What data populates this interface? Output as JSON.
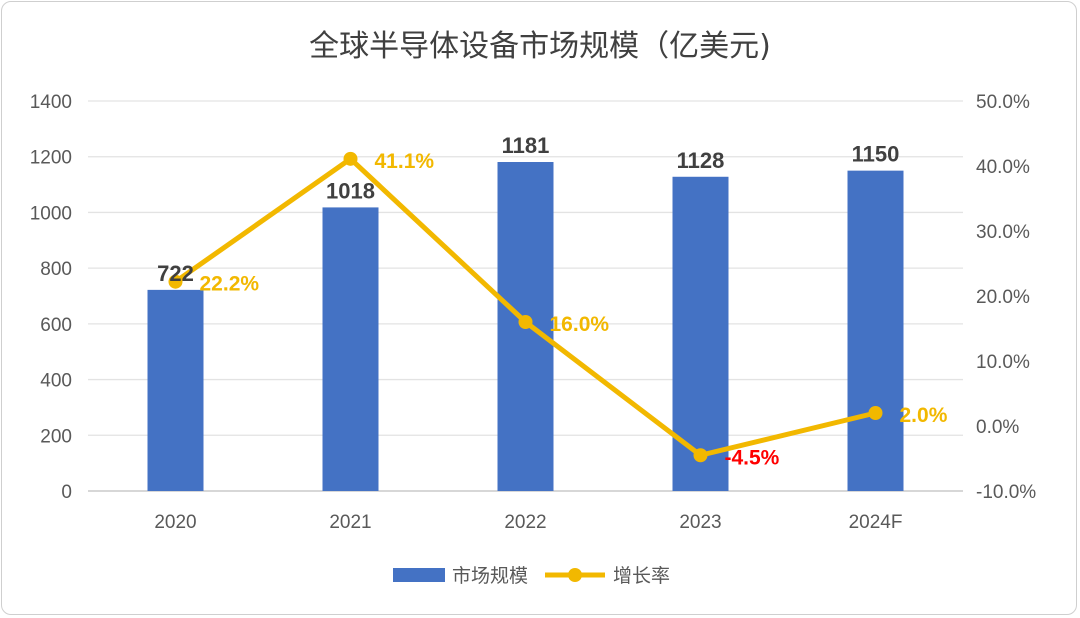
{
  "chart_data": {
    "type": "bar+line",
    "title": "全球半导体设备市场规模（亿美元)",
    "categories": [
      "2020",
      "2021",
      "2022",
      "2023",
      "2024F"
    ],
    "series": [
      {
        "name": "市场规模",
        "type": "bar",
        "axis": "left",
        "values": [
          722,
          1018,
          1181,
          1128,
          1150
        ],
        "labels": [
          "722",
          "1018",
          "1181",
          "1128",
          "1150"
        ],
        "color": "#4472C4"
      },
      {
        "name": "增长率",
        "type": "line",
        "axis": "right",
        "values": [
          22.2,
          41.1,
          16.0,
          -4.5,
          2.0
        ],
        "labels": [
          "22.2%",
          "41.1%",
          "16.0%",
          "-4.5%",
          "2.0%"
        ],
        "color": "#F2B800",
        "negative_label_color": "#FF0000"
      }
    ],
    "left_axis": {
      "ylim": [
        0,
        1400
      ],
      "ticks": [
        "0",
        "200",
        "400",
        "600",
        "800",
        "1000",
        "1200",
        "1400"
      ]
    },
    "right_axis": {
      "ylim": [
        -10,
        50
      ],
      "ticks": [
        "-10.0%",
        "0.0%",
        "10.0%",
        "20.0%",
        "30.0%",
        "40.0%",
        "50.0%"
      ]
    },
    "grid": true,
    "legend": "bottom"
  }
}
